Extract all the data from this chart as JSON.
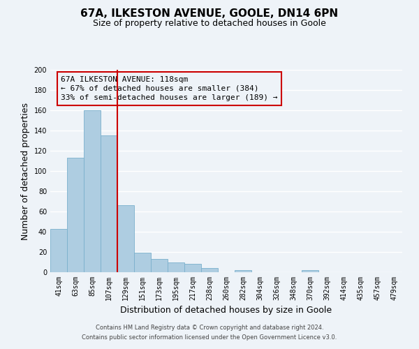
{
  "title": "67A, ILKESTON AVENUE, GOOLE, DN14 6PN",
  "subtitle": "Size of property relative to detached houses in Goole",
  "xlabel": "Distribution of detached houses by size in Goole",
  "ylabel": "Number of detached properties",
  "footer_line1": "Contains HM Land Registry data © Crown copyright and database right 2024.",
  "footer_line2": "Contains public sector information licensed under the Open Government Licence v3.0.",
  "bar_labels": [
    "41sqm",
    "63sqm",
    "85sqm",
    "107sqm",
    "129sqm",
    "151sqm",
    "173sqm",
    "195sqm",
    "217sqm",
    "238sqm",
    "260sqm",
    "282sqm",
    "304sqm",
    "326sqm",
    "348sqm",
    "370sqm",
    "392sqm",
    "414sqm",
    "435sqm",
    "457sqm",
    "479sqm"
  ],
  "bar_values": [
    43,
    113,
    160,
    135,
    66,
    19,
    13,
    10,
    8,
    4,
    0,
    2,
    0,
    0,
    0,
    2,
    0,
    0,
    0,
    0,
    0
  ],
  "bar_color": "#aecde1",
  "bar_edge_color": "#7ab0cc",
  "ylim": [
    0,
    200
  ],
  "yticks": [
    0,
    20,
    40,
    60,
    80,
    100,
    120,
    140,
    160,
    180,
    200
  ],
  "property_line_color": "#cc0000",
  "annotation_title": "67A ILKESTON AVENUE: 118sqm",
  "annotation_line1": "← 67% of detached houses are smaller (384)",
  "annotation_line2": "33% of semi-detached houses are larger (189) →",
  "annotation_box_color": "#cc0000",
  "background_color": "#eef3f8",
  "grid_color": "#ffffff",
  "title_fontsize": 11,
  "subtitle_fontsize": 9,
  "axis_label_fontsize": 9,
  "tick_fontsize": 7,
  "annotation_fontsize": 8,
  "footer_fontsize": 6
}
